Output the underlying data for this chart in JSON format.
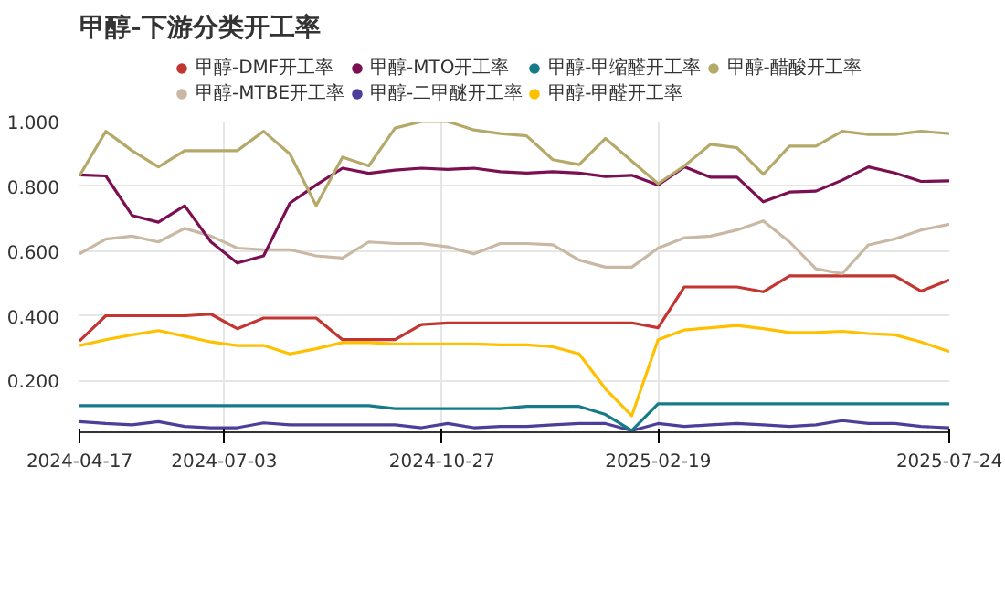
{
  "chart_data": {
    "type": "line",
    "title": "甲醇-下游分类开工率",
    "x": [
      "2024-04-17",
      "2024-05-01",
      "2024-05-15",
      "2024-05-29",
      "2024-06-12",
      "2024-06-26",
      "2024-07-10",
      "2024-07-24",
      "2024-08-07",
      "2024-08-21",
      "2024-09-04",
      "2024-09-18",
      "2024-10-02",
      "2024-10-16",
      "2024-10-30",
      "2024-11-13",
      "2024-11-27",
      "2024-12-11",
      "2024-12-25",
      "2025-01-08",
      "2025-01-22",
      "2025-02-05",
      "2025-02-19",
      "2025-03-05",
      "2025-03-19",
      "2025-04-02",
      "2025-04-16",
      "2025-04-30",
      "2025-05-14",
      "2025-05-28",
      "2025-06-11",
      "2025-06-25",
      "2025-07-09",
      "2025-07-24"
    ],
    "series": [
      {
        "name": "甲醇-DMF开工率",
        "color": "#c23531",
        "values": [
          0.322,
          0.4,
          0.4,
          0.4,
          0.4,
          0.405,
          0.36,
          0.393,
          0.393,
          0.393,
          0.326,
          0.326,
          0.326,
          0.373,
          0.378,
          0.378,
          0.378,
          0.378,
          0.378,
          0.378,
          0.378,
          0.378,
          0.363,
          0.489,
          0.489,
          0.489,
          0.474,
          0.523,
          0.523,
          0.523,
          0.523,
          0.523,
          0.476,
          0.511
        ]
      },
      {
        "name": "甲醇-MTBE开工率",
        "color": "#c9b8a3",
        "values": [
          0.591,
          0.637,
          0.646,
          0.628,
          0.67,
          0.646,
          0.609,
          0.604,
          0.604,
          0.585,
          0.578,
          0.628,
          0.623,
          0.623,
          0.613,
          0.591,
          0.623,
          0.623,
          0.619,
          0.572,
          0.55,
          0.55,
          0.609,
          0.641,
          0.646,
          0.665,
          0.693,
          0.628,
          0.545,
          0.53,
          0.619,
          0.637,
          0.665,
          0.683
        ]
      },
      {
        "name": "甲醇-MTO开工率",
        "color": "#7b0f52",
        "values": [
          0.835,
          0.832,
          0.71,
          0.689,
          0.74,
          0.628,
          0.563,
          0.585,
          0.748,
          0.804,
          0.856,
          0.84,
          0.85,
          0.856,
          0.852,
          0.856,
          0.845,
          0.841,
          0.845,
          0.841,
          0.83,
          0.834,
          0.804,
          0.86,
          0.828,
          0.828,
          0.752,
          0.782,
          0.785,
          0.819,
          0.86,
          0.841,
          0.815,
          0.817
        ]
      },
      {
        "name": "甲醇-二甲醚开工率",
        "color": "#4b3f9a",
        "values": [
          0.073,
          0.067,
          0.063,
          0.073,
          0.058,
          0.054,
          0.054,
          0.069,
          0.063,
          0.063,
          0.063,
          0.063,
          0.063,
          0.054,
          0.067,
          0.054,
          0.058,
          0.058,
          0.063,
          0.067,
          0.067,
          0.045,
          0.067,
          0.058,
          0.063,
          0.067,
          0.063,
          0.058,
          0.063,
          0.076,
          0.067,
          0.067,
          0.058,
          0.054
        ]
      },
      {
        "name": "甲醇-甲缩醛开工率",
        "color": "#167b88",
        "values": [
          0.122,
          0.122,
          0.122,
          0.122,
          0.122,
          0.122,
          0.122,
          0.122,
          0.122,
          0.122,
          0.122,
          0.122,
          0.113,
          0.113,
          0.113,
          0.113,
          0.113,
          0.12,
          0.12,
          0.12,
          0.095,
          0.045,
          0.128,
          0.128,
          0.128,
          0.128,
          0.128,
          0.128,
          0.128,
          0.128,
          0.128,
          0.128,
          0.128,
          0.128
        ]
      },
      {
        "name": "甲醇-甲醛开工率",
        "color": "#ffc000",
        "values": [
          0.308,
          0.326,
          0.341,
          0.354,
          0.337,
          0.319,
          0.308,
          0.308,
          0.282,
          0.298,
          0.317,
          0.317,
          0.313,
          0.313,
          0.313,
          0.313,
          0.31,
          0.31,
          0.304,
          0.282,
          0.174,
          0.091,
          0.326,
          0.356,
          0.363,
          0.37,
          0.36,
          0.348,
          0.348,
          0.352,
          0.345,
          0.341,
          0.319,
          0.289
        ]
      },
      {
        "name": "甲醇-醋酸开工率",
        "color": "#b5a96a",
        "values": [
          0.832,
          0.97,
          0.91,
          0.86,
          0.91,
          0.91,
          0.91,
          0.97,
          0.9,
          0.74,
          0.89,
          0.863,
          0.98,
          1.0,
          1.0,
          0.974,
          0.963,
          0.956,
          0.882,
          0.867,
          0.948,
          0.878,
          0.808,
          0.863,
          0.93,
          0.919,
          0.837,
          0.924,
          0.924,
          0.97,
          0.96,
          0.96,
          0.97,
          0.963
        ]
      }
    ],
    "xlim": [
      "2024-04-17",
      "2025-07-24"
    ],
    "xticks": [
      "2024-04-17",
      "2024-07-03",
      "2024-10-27",
      "2025-02-19",
      "2025-07-24"
    ],
    "ylim": [
      0.04,
      1.0
    ],
    "yticks": [
      {
        "value": 0.2,
        "label": "0.200"
      },
      {
        "value": 0.4,
        "label": "0.400"
      },
      {
        "value": 0.6,
        "label": "0.600"
      },
      {
        "value": 0.8,
        "label": "0.800"
      },
      {
        "value": 1.0,
        "label": "1.000"
      }
    ],
    "grid": true,
    "legend": "top"
  }
}
